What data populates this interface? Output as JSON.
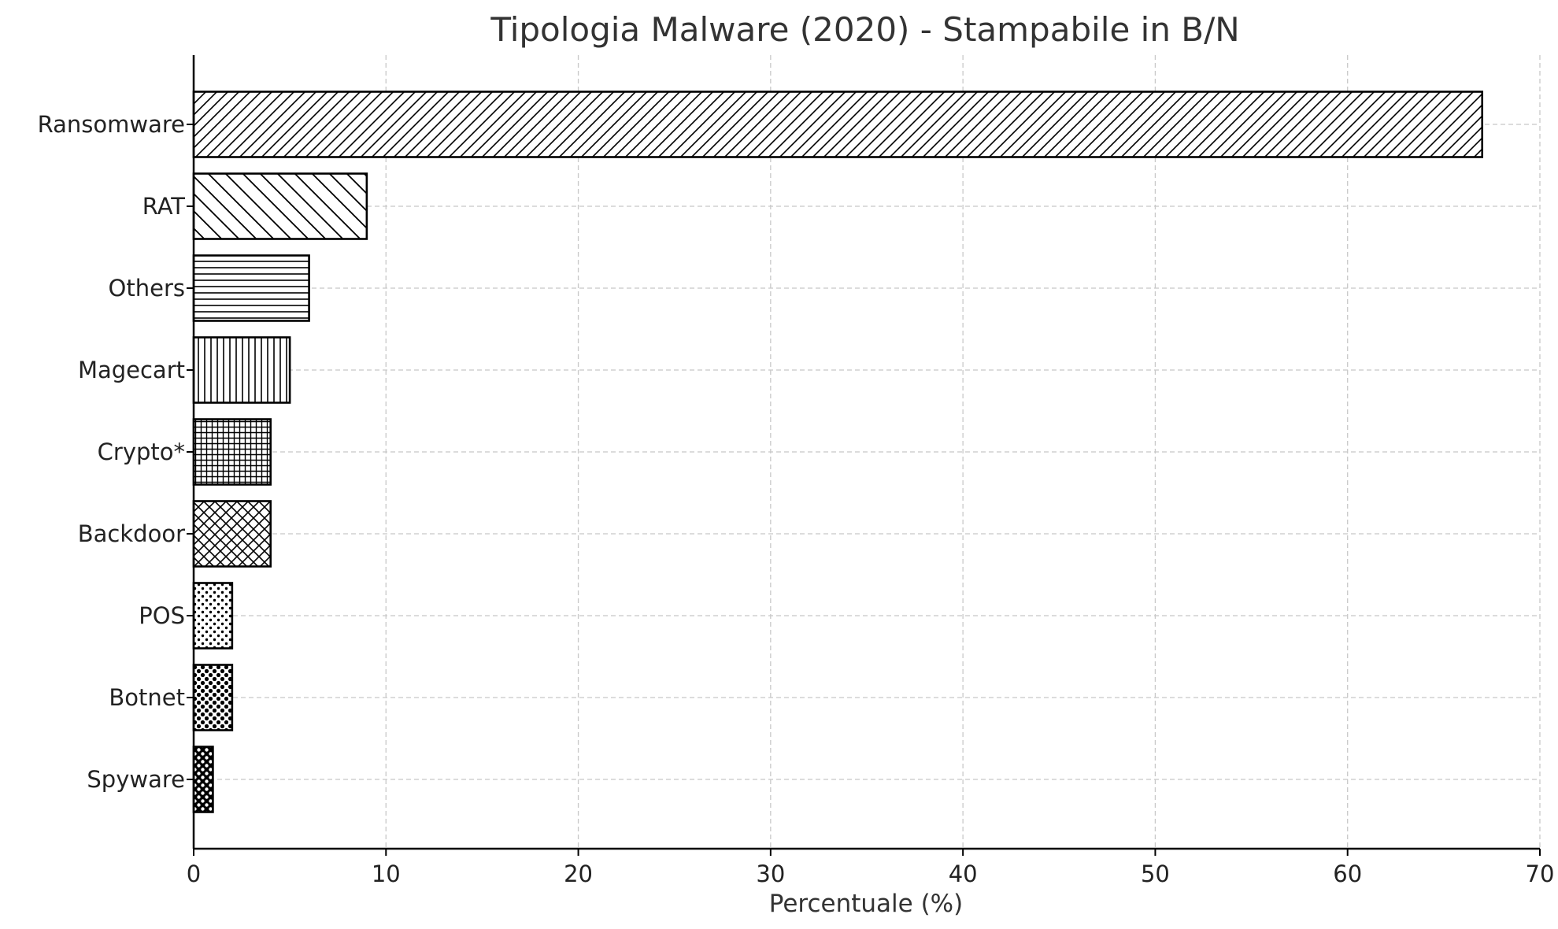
{
  "chart_data": {
    "type": "bar",
    "orientation": "horizontal",
    "title": "Tipologia Malware (2020) - Stampabile in B/N",
    "xlabel": "Percentuale (%)",
    "ylabel": "",
    "xlim": [
      0,
      70
    ],
    "xticks": [
      0,
      10,
      20,
      30,
      40,
      50,
      60,
      70
    ],
    "grid": true,
    "categories": [
      "Ransomware",
      "RAT",
      "Others",
      "Magecart",
      "Crypto*",
      "Backdoor",
      "POS",
      "Botnet",
      "Spyware"
    ],
    "values": [
      67,
      9,
      6,
      5,
      4,
      4,
      2,
      2,
      1
    ],
    "hatches": [
      "diag-forward",
      "diag-back",
      "horizontal",
      "vertical",
      "grid",
      "crosshatch",
      "dots-small",
      "dots-medium",
      "dots-large"
    ],
    "colors": {
      "fill": "#ffffff",
      "edge": "#000000",
      "grid": "#c8c8c8"
    }
  }
}
